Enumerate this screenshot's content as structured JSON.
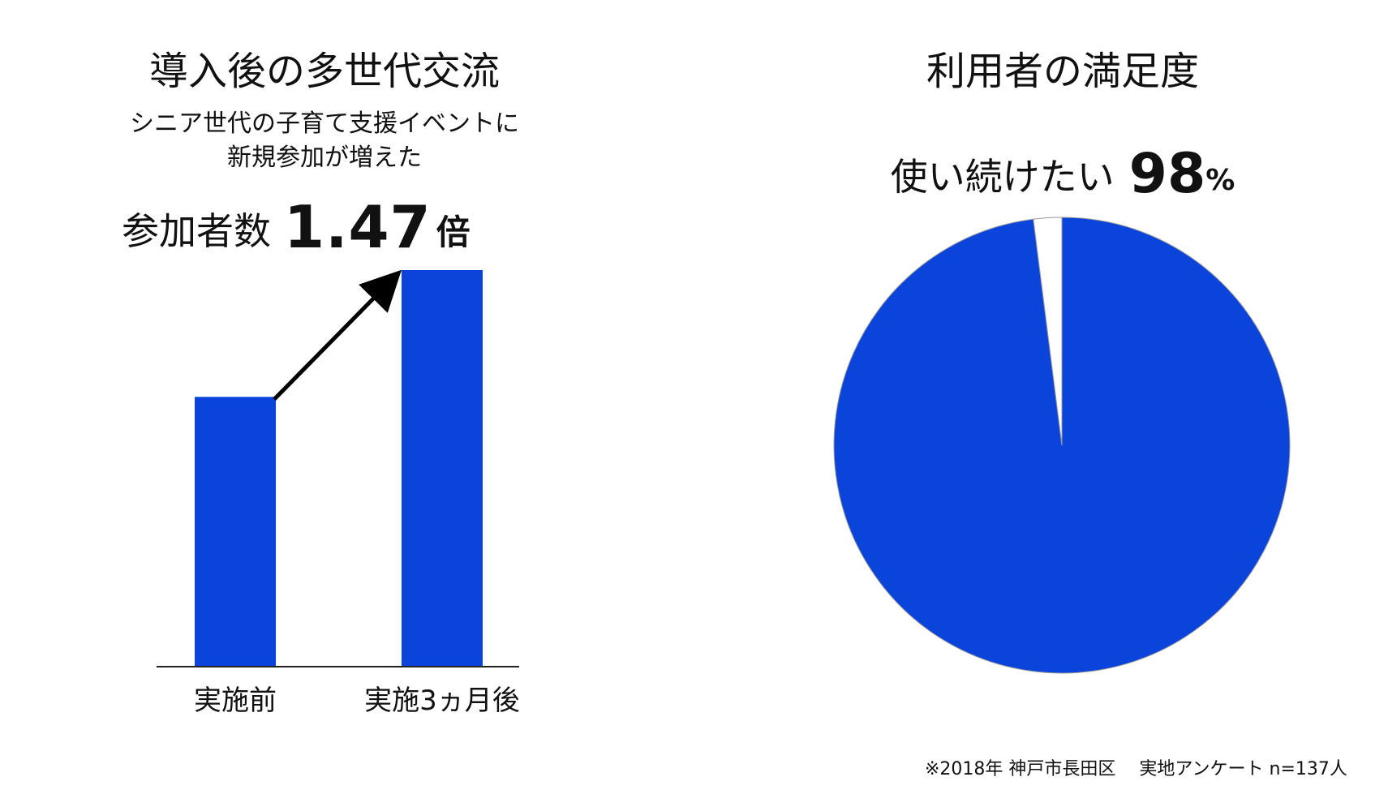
{
  "colors": {
    "bar": "#0b44db",
    "pie_main": "#0b44db",
    "pie_rest": "#ffffff",
    "axis": "#222222",
    "arrow": "#000000"
  },
  "left": {
    "title": "導入後の多世代交流",
    "subtitle_lines": [
      "シニア世代の子育て支援イベントに",
      "新規参加が増えた"
    ],
    "headline_prefix": "参加者数",
    "headline_value": "1.47",
    "headline_unit": "倍"
  },
  "right": {
    "title": "利用者の満足度",
    "headline_prefix": "使い続けたい",
    "headline_value": "98",
    "headline_unit": "%"
  },
  "footnote": "※2018年 神戸市長田区 　実地アンケート n=137人",
  "chart_data": [
    {
      "type": "bar",
      "title": "導入後の多世代交流",
      "categories": [
        "実施前",
        "実施3ヵ月後"
      ],
      "values": [
        1.0,
        1.47
      ],
      "ylim": [
        0,
        1.47
      ],
      "xlabel": "",
      "ylabel": ""
    },
    {
      "type": "pie",
      "title": "利用者の満足度",
      "slices": [
        {
          "value": 98,
          "color": "#0b44db"
        },
        {
          "value": 2,
          "color": "#ffffff"
        }
      ]
    }
  ]
}
